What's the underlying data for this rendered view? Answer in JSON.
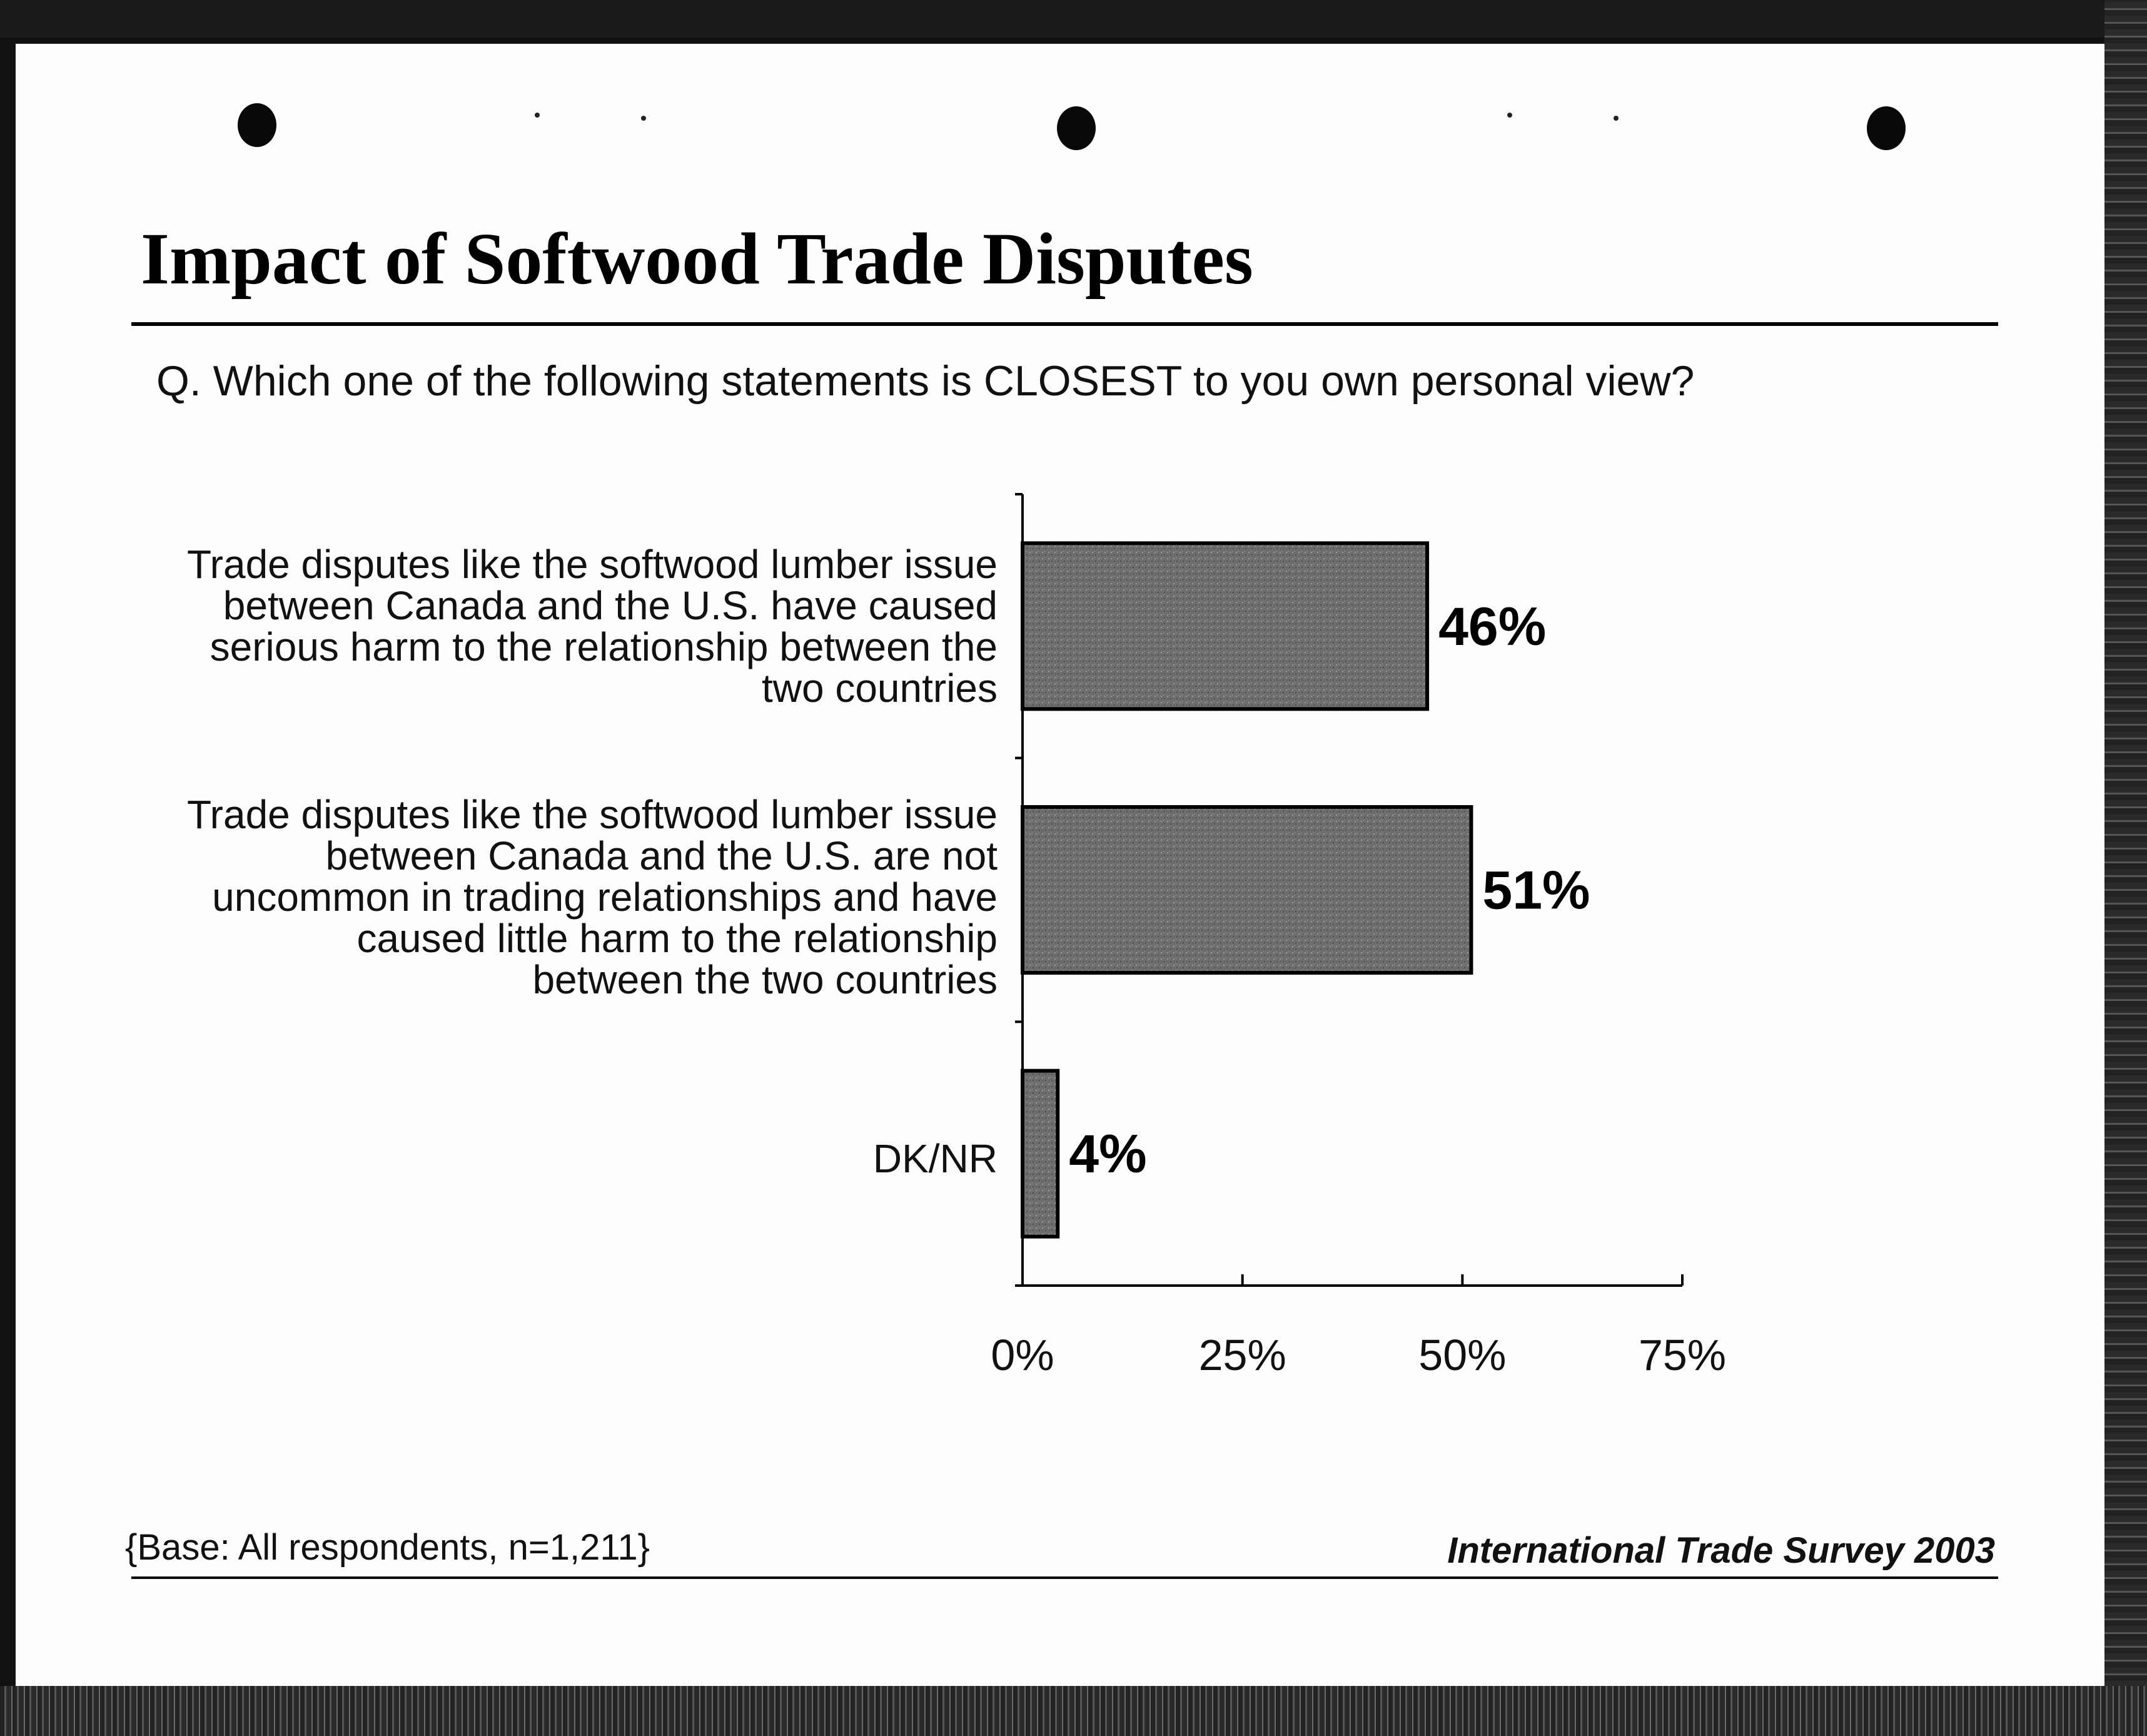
{
  "title": "Impact of Softwood Trade Disputes",
  "question": "Q. Which one of the following statements is CLOSEST to you own personal view?",
  "footer": {
    "base": "{Base: All respondents, n=1,211}",
    "source": "International Trade Survey 2003"
  },
  "chart_data": {
    "type": "bar",
    "orientation": "horizontal",
    "categories": [
      "Trade disputes like the softwood lumber issue\nbetween Canada and the U.S. have caused\nserious harm to the relationship between the\ntwo countries",
      "Trade disputes like the softwood lumber issue\nbetween Canada and the U.S. are not\nuncommon in trading relationships and have\ncaused little harm to the relationship\nbetween the two countries",
      "DK/NR"
    ],
    "values": [
      46,
      51,
      4
    ],
    "data_labels": [
      "46%",
      "51%",
      "4%"
    ],
    "x_ticks": [
      "0%",
      "25%",
      "50%",
      "75%"
    ],
    "xlim": [
      0,
      75
    ],
    "grid": false,
    "legend": "none",
    "bar_color": "#6e6e6e"
  }
}
